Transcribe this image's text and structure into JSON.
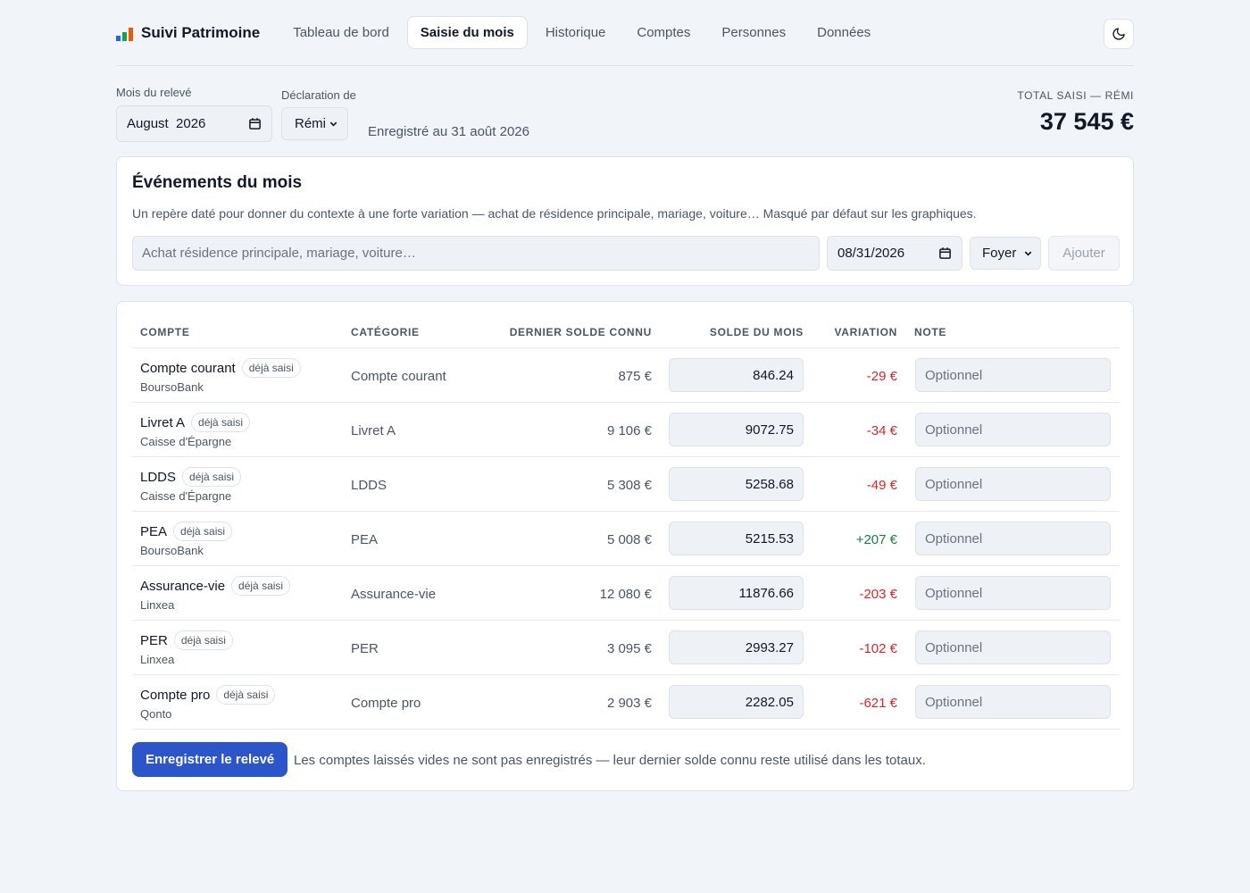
{
  "app": {
    "name": "Suivi Patrimoine"
  },
  "colors": {
    "accent": "#2c55c9",
    "negative": "#dc2626",
    "positive": "#15803d"
  },
  "nav": [
    {
      "label": "Tableau de bord",
      "active": false
    },
    {
      "label": "Saisie du mois",
      "active": true
    },
    {
      "label": "Historique",
      "active": false
    },
    {
      "label": "Comptes",
      "active": false
    },
    {
      "label": "Personnes",
      "active": false
    },
    {
      "label": "Données",
      "active": false
    }
  ],
  "controls": {
    "month_label": "Mois du relevé",
    "month_value": "August  2026",
    "person_label": "Déclaration de",
    "person_value": "Rémi",
    "saved_note": "Enregistré au 31 août 2026",
    "total_label": "TOTAL SAISI — RÉMI",
    "total_value": "37 545 €"
  },
  "events": {
    "title": "Événements du mois",
    "description": "Un repère daté pour donner du contexte à une forte variation — achat de résidence principale, mariage, voiture… Masqué par défaut sur les graphiques.",
    "placeholder": "Achat résidence principale, mariage, voiture…",
    "date_value": "08/31/2026",
    "scope_value": "Foyer",
    "add_label": "Ajouter"
  },
  "table": {
    "headers": {
      "account": "COMPTE",
      "category": "CATÉGORIE",
      "last": "DERNIER SOLDE CONNU",
      "balance": "SOLDE DU MOIS",
      "variation": "VARIATION",
      "note": "NOTE"
    },
    "badge": "déjà saisi",
    "note_placeholder": "Optionnel",
    "rows": [
      {
        "name": "Compte courant",
        "bank": "BoursoBank",
        "category": "Compte courant",
        "last": "875 €",
        "balance": "846.24",
        "variation": "-29 €",
        "sign": "neg"
      },
      {
        "name": "Livret A",
        "bank": "Caisse d'Épargne",
        "category": "Livret A",
        "last": "9 106 €",
        "balance": "9072.75",
        "variation": "-34 €",
        "sign": "neg"
      },
      {
        "name": "LDDS",
        "bank": "Caisse d'Épargne",
        "category": "LDDS",
        "last": "5 308 €",
        "balance": "5258.68",
        "variation": "-49 €",
        "sign": "neg"
      },
      {
        "name": "PEA",
        "bank": "BoursoBank",
        "category": "PEA",
        "last": "5 008 €",
        "balance": "5215.53",
        "variation": "+207 €",
        "sign": "pos"
      },
      {
        "name": "Assurance-vie",
        "bank": "Linxea",
        "category": "Assurance-vie",
        "last": "12 080 €",
        "balance": "11876.66",
        "variation": "-203 €",
        "sign": "neg"
      },
      {
        "name": "PER",
        "bank": "Linxea",
        "category": "PER",
        "last": "3 095 €",
        "balance": "2993.27",
        "variation": "-102 €",
        "sign": "neg"
      },
      {
        "name": "Compte pro",
        "bank": "Qonto",
        "category": "Compte pro",
        "last": "2 903 €",
        "balance": "2282.05",
        "variation": "-621 €",
        "sign": "neg"
      }
    ]
  },
  "footer": {
    "save_label": "Enregistrer le relevé",
    "hint": "Les comptes laissés vides ne sont pas enregistrés — leur dernier solde connu reste utilisé dans les totaux."
  }
}
